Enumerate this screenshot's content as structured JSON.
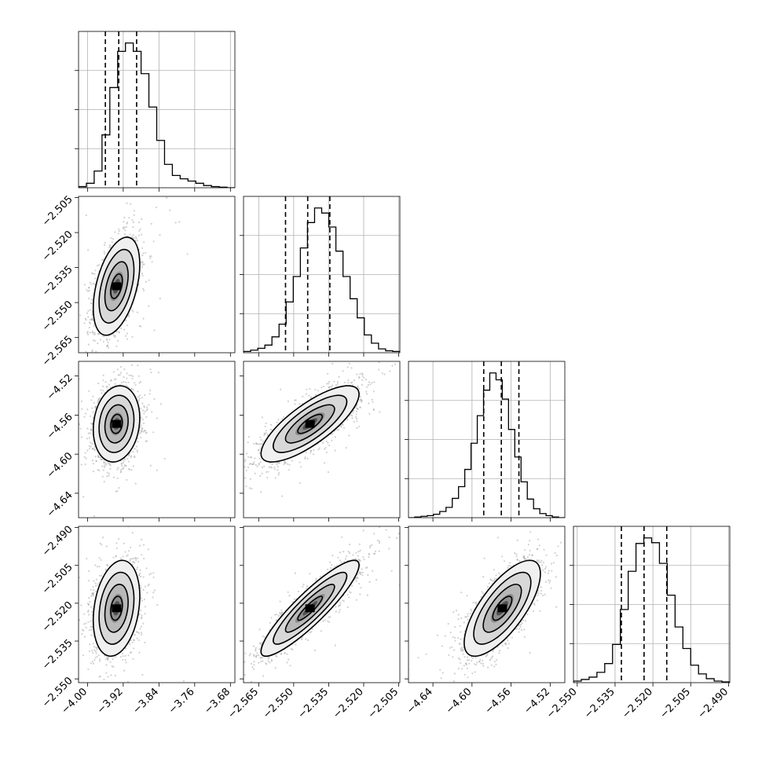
{
  "chart_data": {
    "type": "corner",
    "parameters": [
      {
        "index": 0,
        "ticks": [
          "−4.00",
          "−3.92",
          "−3.84",
          "−3.76",
          "−3.68"
        ],
        "tick_values": [
          -4.0,
          -3.92,
          -3.84,
          -3.76,
          -3.68
        ],
        "range": [
          -4.02,
          -3.67
        ],
        "quantiles": [
          -3.96,
          -3.93,
          -3.89
        ]
      },
      {
        "index": 1,
        "ticks": [
          "−2.565",
          "−2.550",
          "−2.535",
          "−2.520",
          "−2.505"
        ],
        "tick_values": [
          -2.565,
          -2.55,
          -2.535,
          -2.52,
          -2.505
        ],
        "range": [
          -2.5715,
          -2.5045
        ],
        "quantiles": [
          -2.5535,
          -2.544,
          -2.5345
        ]
      },
      {
        "index": 2,
        "ticks": [
          "−4.64",
          "−4.60",
          "−4.56",
          "−4.52"
        ],
        "tick_values": [
          -4.64,
          -4.6,
          -4.56,
          -4.52
        ],
        "range": [
          -4.665,
          -4.505
        ],
        "quantiles": [
          -4.588,
          -4.57,
          -4.552
        ]
      },
      {
        "index": 3,
        "ticks": [
          "−2.550",
          "−2.535",
          "−2.520",
          "−2.505",
          "−2.490"
        ],
        "tick_values": [
          -2.55,
          -2.535,
          -2.52,
          -2.505,
          -2.49
        ],
        "range": [
          -2.5515,
          -2.4895
        ],
        "quantiles": [
          -2.5325,
          -2.5235,
          -2.5145
        ]
      }
    ],
    "histograms": [
      {
        "param": 0,
        "counts": [
          2,
          8,
          30,
          95,
          180,
          245,
          260,
          245,
          205,
          145,
          85,
          42,
          22,
          16,
          12,
          8,
          4,
          2,
          1,
          0
        ]
      },
      {
        "param": 1,
        "counts": [
          2,
          4,
          7,
          12,
          25,
          45,
          80,
          120,
          165,
          205,
          228,
          220,
          198,
          160,
          120,
          85,
          55,
          28,
          15,
          6,
          3,
          2
        ]
      },
      {
        "param": 2,
        "counts": [
          0,
          1,
          2,
          3,
          5,
          9,
          15,
          28,
          45,
          70,
          108,
          148,
          185,
          210,
          200,
          172,
          128,
          88,
          52,
          27,
          13,
          6,
          3,
          1,
          0
        ]
      },
      {
        "param": 3,
        "counts": [
          2,
          4,
          7,
          13,
          24,
          48,
          92,
          140,
          175,
          182,
          176,
          150,
          110,
          70,
          43,
          22,
          11,
          5,
          2,
          1
        ]
      }
    ],
    "scatter_blobs": [
      {
        "x_param": 0,
        "y_param": 1,
        "center": [
          -3.935,
          -2.543
        ],
        "sigma": [
          0.026,
          0.0105
        ],
        "rho": 0.45
      },
      {
        "x_param": 0,
        "y_param": 2,
        "center": [
          -3.935,
          -4.569
        ],
        "sigma": [
          0.026,
          0.0195
        ],
        "rho": 0.15
      },
      {
        "x_param": 1,
        "y_param": 2,
        "center": [
          -2.543,
          -4.569
        ],
        "sigma": [
          0.0105,
          0.0195
        ],
        "rho": 0.78
      },
      {
        "x_param": 0,
        "y_param": 3,
        "center": [
          -3.935,
          -2.522
        ],
        "sigma": [
          0.026,
          0.0095
        ],
        "rho": 0.25
      },
      {
        "x_param": 1,
        "y_param": 3,
        "center": [
          -2.543,
          -2.522
        ],
        "sigma": [
          0.0105,
          0.0095
        ],
        "rho": 0.9
      },
      {
        "x_param": 2,
        "y_param": 3,
        "center": [
          -4.569,
          -2.522
        ],
        "sigma": [
          0.0195,
          0.0095
        ],
        "rho": 0.72
      }
    ],
    "contour_levels_sigma": [
      0.5,
      1.0,
      1.5,
      2.0
    ],
    "grid": true,
    "quantile_line_style": "dashed",
    "colors": {
      "line": "#000000",
      "grid": "#b0b0b0",
      "points": "#9a9a9a"
    }
  }
}
